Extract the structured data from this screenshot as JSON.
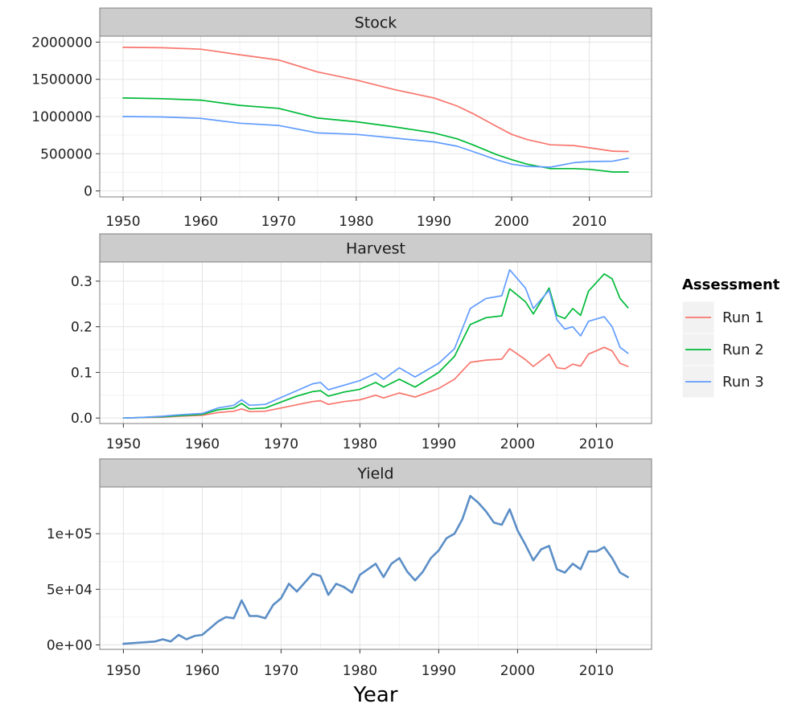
{
  "chart_data": [
    {
      "type": "line",
      "title": "Stock",
      "xlabel": "",
      "ylabel": "",
      "xlim": [
        1947,
        2018
      ],
      "ylim": [
        -80000,
        2080000
      ],
      "xticks": [
        1950,
        1960,
        1970,
        1980,
        1990,
        2000,
        2010
      ],
      "xtick_labels": [
        "1950",
        "1960",
        "1970",
        "1980",
        "1990",
        "2000",
        "2010"
      ],
      "yticks": [
        0,
        500000,
        1000000,
        1500000,
        2000000
      ],
      "ytick_labels": [
        "0",
        "500000",
        "1000000",
        "1500000",
        "2000000"
      ],
      "grid": true,
      "series": [
        {
          "name": "Run 1",
          "color": "#F8766D",
          "x": [
            1950,
            1955,
            1960,
            1965,
            1970,
            1975,
            1980,
            1985,
            1990,
            1993,
            1995,
            1998,
            2000,
            2002,
            2005,
            2008,
            2010,
            2013,
            2015
          ],
          "y": [
            1930000,
            1925000,
            1905000,
            1830000,
            1760000,
            1600000,
            1490000,
            1360000,
            1250000,
            1140000,
            1040000,
            870000,
            760000,
            690000,
            620000,
            610000,
            580000,
            535000,
            530000
          ]
        },
        {
          "name": "Run 2",
          "color": "#00BA38",
          "x": [
            1950,
            1955,
            1960,
            1965,
            1970,
            1975,
            1980,
            1985,
            1990,
            1993,
            1995,
            1998,
            2000,
            2002,
            2005,
            2008,
            2010,
            2013,
            2015
          ],
          "y": [
            1250000,
            1240000,
            1220000,
            1150000,
            1110000,
            980000,
            930000,
            860000,
            780000,
            700000,
            620000,
            490000,
            420000,
            360000,
            300000,
            300000,
            290000,
            255000,
            255000
          ]
        },
        {
          "name": "Run 3",
          "color": "#619CFF",
          "x": [
            1950,
            1955,
            1960,
            1965,
            1970,
            1975,
            1980,
            1985,
            1990,
            1993,
            1995,
            1998,
            2000,
            2002,
            2005,
            2008,
            2010,
            2013,
            2015
          ],
          "y": [
            1000000,
            995000,
            975000,
            910000,
            880000,
            780000,
            760000,
            710000,
            660000,
            600000,
            530000,
            420000,
            360000,
            330000,
            320000,
            380000,
            395000,
            400000,
            440000
          ]
        }
      ]
    },
    {
      "type": "line",
      "title": "Harvest",
      "xlabel": "",
      "ylabel": "",
      "xlim": [
        1947,
        2017
      ],
      "ylim": [
        -0.012,
        0.342
      ],
      "xticks": [
        1950,
        1960,
        1970,
        1980,
        1990,
        2000,
        2010
      ],
      "xtick_labels": [
        "1950",
        "1960",
        "1970",
        "1980",
        "1990",
        "2000",
        "2010"
      ],
      "yticks": [
        0,
        0.1,
        0.2,
        0.3
      ],
      "ytick_labels": [
        "0.0",
        "0.1",
        "0.2",
        "0.3"
      ],
      "grid": true,
      "series": [
        {
          "name": "Run 1",
          "color": "#F8766D",
          "x": [
            1950,
            1952,
            1955,
            1957,
            1960,
            1962,
            1964,
            1965,
            1966,
            1968,
            1970,
            1972,
            1974,
            1975,
            1976,
            1978,
            1980,
            1982,
            1983,
            1985,
            1987,
            1990,
            1992,
            1994,
            1996,
            1998,
            1999,
            2001,
            2002,
            2004,
            2005,
            2006,
            2007,
            2008,
            2009,
            2011,
            2012,
            2013,
            2014
          ],
          "y": [
            0,
            0.001,
            0.002,
            0.004,
            0.006,
            0.012,
            0.015,
            0.02,
            0.014,
            0.015,
            0.022,
            0.029,
            0.036,
            0.038,
            0.03,
            0.036,
            0.04,
            0.05,
            0.044,
            0.055,
            0.046,
            0.065,
            0.085,
            0.122,
            0.127,
            0.129,
            0.152,
            0.128,
            0.113,
            0.14,
            0.11,
            0.108,
            0.118,
            0.114,
            0.14,
            0.155,
            0.147,
            0.12,
            0.113
          ]
        },
        {
          "name": "Run 2",
          "color": "#00BA38",
          "x": [
            1950,
            1952,
            1955,
            1957,
            1960,
            1962,
            1964,
            1965,
            1966,
            1968,
            1970,
            1972,
            1974,
            1975,
            1976,
            1978,
            1980,
            1982,
            1983,
            1985,
            1987,
            1990,
            1992,
            1994,
            1996,
            1998,
            1999,
            2001,
            2002,
            2004,
            2005,
            2006,
            2007,
            2008,
            2009,
            2011,
            2012,
            2013,
            2014
          ],
          "y": [
            0,
            0.001,
            0.003,
            0.005,
            0.008,
            0.018,
            0.022,
            0.032,
            0.02,
            0.022,
            0.035,
            0.048,
            0.058,
            0.06,
            0.048,
            0.057,
            0.063,
            0.078,
            0.068,
            0.085,
            0.068,
            0.1,
            0.135,
            0.205,
            0.22,
            0.224,
            0.283,
            0.255,
            0.228,
            0.285,
            0.225,
            0.218,
            0.24,
            0.225,
            0.278,
            0.316,
            0.305,
            0.262,
            0.242
          ]
        },
        {
          "name": "Run 3",
          "color": "#619CFF",
          "x": [
            1950,
            1952,
            1955,
            1957,
            1960,
            1962,
            1964,
            1965,
            1966,
            1968,
            1970,
            1972,
            1974,
            1975,
            1976,
            1978,
            1980,
            1982,
            1983,
            1985,
            1987,
            1990,
            1992,
            1994,
            1996,
            1998,
            1999,
            2001,
            2002,
            2004,
            2005,
            2006,
            2007,
            2008,
            2009,
            2011,
            2012,
            2013,
            2014
          ],
          "y": [
            0,
            0.001,
            0.004,
            0.007,
            0.01,
            0.022,
            0.028,
            0.04,
            0.028,
            0.03,
            0.045,
            0.06,
            0.075,
            0.078,
            0.062,
            0.072,
            0.082,
            0.098,
            0.085,
            0.11,
            0.09,
            0.12,
            0.152,
            0.24,
            0.262,
            0.268,
            0.325,
            0.285,
            0.24,
            0.28,
            0.215,
            0.195,
            0.2,
            0.18,
            0.212,
            0.222,
            0.2,
            0.155,
            0.142
          ]
        }
      ]
    },
    {
      "type": "line",
      "title": "Yield",
      "xlabel": "Year",
      "ylabel": "",
      "xlim": [
        1947,
        2017
      ],
      "ylim": [
        -4000,
        142000
      ],
      "xticks": [
        1950,
        1960,
        1970,
        1980,
        1990,
        2000,
        2010
      ],
      "xtick_labels": [
        "1950",
        "1960",
        "1970",
        "1980",
        "1990",
        "2000",
        "2010"
      ],
      "yticks": [
        0,
        50000,
        100000
      ],
      "ytick_labels": [
        "0e+00",
        "5e+04",
        "1e+05"
      ],
      "grid": true,
      "series": [
        {
          "color": "#5B8EC6",
          "x": [
            1950,
            1952,
            1954,
            1955,
            1956,
            1957,
            1958,
            1959,
            1960,
            1961,
            1962,
            1963,
            1964,
            1965,
            1966,
            1967,
            1968,
            1969,
            1970,
            1971,
            1972,
            1973,
            1974,
            1975,
            1976,
            1977,
            1978,
            1979,
            1980,
            1981,
            1982,
            1983,
            1984,
            1985,
            1986,
            1987,
            1988,
            1989,
            1990,
            1991,
            1992,
            1993,
            1994,
            1995,
            1996,
            1997,
            1998,
            1999,
            2000,
            2001,
            2002,
            2003,
            2004,
            2005,
            2006,
            2007,
            2008,
            2009,
            2010,
            2011,
            2012,
            2013,
            2014
          ],
          "y": [
            1000,
            2000,
            3000,
            5000,
            3000,
            9000,
            5000,
            8000,
            9000,
            15000,
            21000,
            25000,
            24000,
            40000,
            26000,
            26000,
            24000,
            36000,
            42000,
            55000,
            48000,
            56000,
            64000,
            62000,
            45000,
            55000,
            52000,
            47000,
            63000,
            68000,
            73000,
            61000,
            73000,
            78000,
            66000,
            58000,
            66000,
            78000,
            85000,
            96000,
            100000,
            113000,
            134000,
            128000,
            120000,
            110000,
            108000,
            122000,
            103000,
            90000,
            76000,
            86000,
            89000,
            68000,
            65000,
            73000,
            68000,
            84000,
            84000,
            88000,
            78000,
            65000,
            61000
          ]
        }
      ]
    }
  ],
  "legend": {
    "title": "Assessment",
    "placement": "right",
    "items": [
      {
        "label": "Run 1",
        "color": "#F8766D"
      },
      {
        "label": "Run 2",
        "color": "#00BA38"
      },
      {
        "label": "Run 3",
        "color": "#619CFF"
      }
    ]
  }
}
